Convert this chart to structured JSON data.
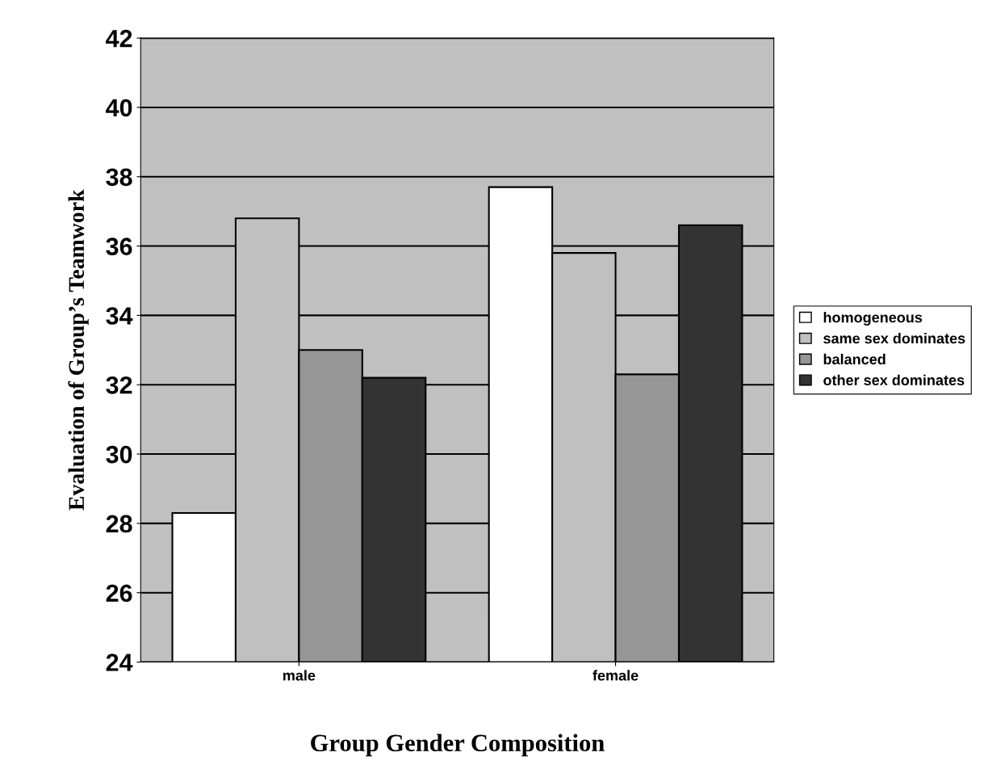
{
  "chart_data": {
    "type": "bar",
    "xlabel": "Group Gender Composition",
    "ylabel": "Evaluation of Group’s Teamwork",
    "categories": [
      "male",
      "female"
    ],
    "series": [
      {
        "name": "homogeneous",
        "color": "#ffffff",
        "values": [
          28.3,
          37.7
        ]
      },
      {
        "name": "same sex dominates",
        "color": "#c0c0c0",
        "values": [
          36.8,
          35.8
        ]
      },
      {
        "name": "balanced",
        "color": "#969696",
        "values": [
          33.0,
          32.3
        ]
      },
      {
        "name": "other sex dominates",
        "color": "#333333",
        "values": [
          32.2,
          36.6
        ]
      }
    ],
    "ylim": [
      24,
      42
    ],
    "yticks": [
      24,
      26,
      28,
      30,
      32,
      34,
      36,
      38,
      40,
      42
    ],
    "grid": "y",
    "legend": "right"
  }
}
